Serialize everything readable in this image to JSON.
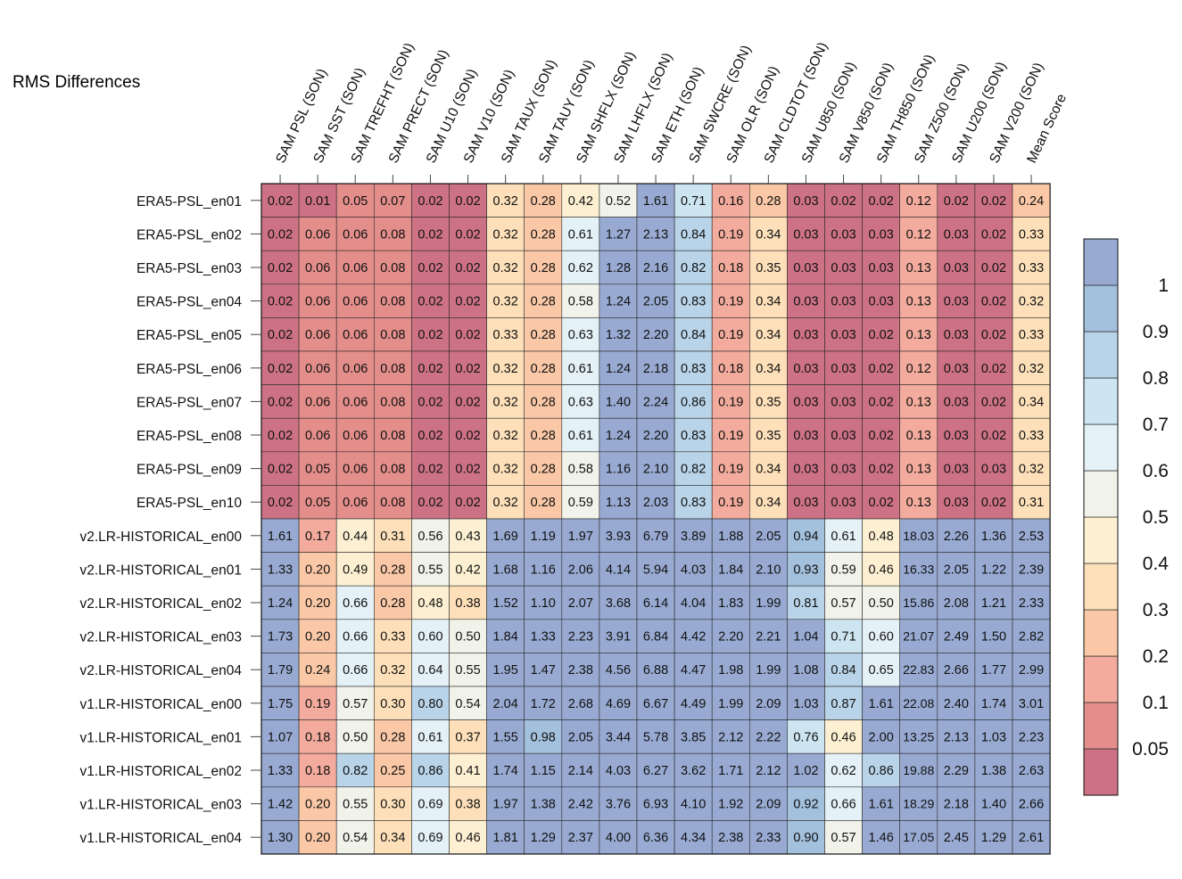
{
  "title": "RMS Differences",
  "chart_data": {
    "type": "heatmap",
    "columns": [
      "SAM PSL (SON)",
      "SAM SST (SON)",
      "SAM TREFHT (SON)",
      "SAM PRECT (SON)",
      "SAM U10 (SON)",
      "SAM V10 (SON)",
      "SAM TAUX (SON)",
      "SAM TAUY (SON)",
      "SAM SHFLX (SON)",
      "SAM LHFLX (SON)",
      "SAM ETH (SON)",
      "SAM SWCRE (SON)",
      "SAM OLR (SON)",
      "SAM CLDTOT (SON)",
      "SAM U850 (SON)",
      "SAM V850 (SON)",
      "SAM TH850 (SON)",
      "SAM Z500 (SON)",
      "SAM U200 (SON)",
      "SAM V200 (SON)",
      "Mean Score"
    ],
    "rows": [
      "ERA5-PSL_en01",
      "ERA5-PSL_en02",
      "ERA5-PSL_en03",
      "ERA5-PSL_en04",
      "ERA5-PSL_en05",
      "ERA5-PSL_en06",
      "ERA5-PSL_en07",
      "ERA5-PSL_en08",
      "ERA5-PSL_en09",
      "ERA5-PSL_en10",
      "v2.LR-HISTORICAL_en00",
      "v2.LR-HISTORICAL_en01",
      "v2.LR-HISTORICAL_en02",
      "v2.LR-HISTORICAL_en03",
      "v2.LR-HISTORICAL_en04",
      "v1.LR-HISTORICAL_en00",
      "v1.LR-HISTORICAL_en01",
      "v1.LR-HISTORICAL_en02",
      "v1.LR-HISTORICAL_en03",
      "v1.LR-HISTORICAL_en04"
    ],
    "values": [
      [
        0.02,
        0.01,
        0.05,
        0.07,
        0.02,
        0.02,
        0.32,
        0.28,
        0.42,
        0.52,
        1.61,
        0.71,
        0.16,
        0.28,
        0.03,
        0.02,
        0.02,
        0.12,
        0.02,
        0.02,
        0.24
      ],
      [
        0.02,
        0.06,
        0.06,
        0.08,
        0.02,
        0.02,
        0.32,
        0.28,
        0.61,
        1.27,
        2.13,
        0.84,
        0.19,
        0.34,
        0.03,
        0.03,
        0.03,
        0.12,
        0.03,
        0.02,
        0.33
      ],
      [
        0.02,
        0.06,
        0.06,
        0.08,
        0.02,
        0.02,
        0.32,
        0.28,
        0.62,
        1.28,
        2.16,
        0.82,
        0.18,
        0.35,
        0.03,
        0.03,
        0.03,
        0.13,
        0.03,
        0.02,
        0.33
      ],
      [
        0.02,
        0.06,
        0.06,
        0.08,
        0.02,
        0.02,
        0.32,
        0.28,
        0.58,
        1.24,
        2.05,
        0.83,
        0.19,
        0.34,
        0.03,
        0.03,
        0.03,
        0.13,
        0.03,
        0.02,
        0.32
      ],
      [
        0.02,
        0.06,
        0.06,
        0.08,
        0.02,
        0.02,
        0.33,
        0.28,
        0.63,
        1.32,
        2.2,
        0.84,
        0.19,
        0.34,
        0.03,
        0.03,
        0.02,
        0.13,
        0.03,
        0.02,
        0.33
      ],
      [
        0.02,
        0.06,
        0.06,
        0.08,
        0.02,
        0.02,
        0.32,
        0.28,
        0.61,
        1.24,
        2.18,
        0.83,
        0.18,
        0.34,
        0.03,
        0.03,
        0.02,
        0.12,
        0.03,
        0.02,
        0.32
      ],
      [
        0.02,
        0.06,
        0.06,
        0.08,
        0.02,
        0.02,
        0.32,
        0.28,
        0.63,
        1.4,
        2.24,
        0.86,
        0.19,
        0.35,
        0.03,
        0.03,
        0.02,
        0.13,
        0.03,
        0.02,
        0.34
      ],
      [
        0.02,
        0.06,
        0.06,
        0.08,
        0.02,
        0.02,
        0.32,
        0.28,
        0.61,
        1.24,
        2.2,
        0.83,
        0.19,
        0.35,
        0.03,
        0.03,
        0.02,
        0.13,
        0.03,
        0.02,
        0.33
      ],
      [
        0.02,
        0.05,
        0.06,
        0.08,
        0.02,
        0.02,
        0.32,
        0.28,
        0.58,
        1.16,
        2.1,
        0.82,
        0.19,
        0.34,
        0.03,
        0.03,
        0.02,
        0.13,
        0.03,
        0.03,
        0.32
      ],
      [
        0.02,
        0.05,
        0.06,
        0.08,
        0.02,
        0.02,
        0.32,
        0.28,
        0.59,
        1.13,
        2.03,
        0.83,
        0.19,
        0.34,
        0.03,
        0.03,
        0.02,
        0.13,
        0.03,
        0.02,
        0.31
      ],
      [
        1.61,
        0.17,
        0.44,
        0.31,
        0.56,
        0.43,
        1.69,
        1.19,
        1.97,
        3.93,
        6.79,
        3.89,
        1.88,
        2.05,
        0.94,
        0.61,
        0.48,
        18.03,
        2.26,
        1.36,
        2.53
      ],
      [
        1.33,
        0.2,
        0.49,
        0.28,
        0.55,
        0.42,
        1.68,
        1.16,
        2.06,
        4.14,
        5.94,
        4.03,
        1.84,
        2.1,
        0.93,
        0.59,
        0.46,
        16.33,
        2.05,
        1.22,
        2.39
      ],
      [
        1.24,
        0.2,
        0.66,
        0.28,
        0.48,
        0.38,
        1.52,
        1.1,
        2.07,
        3.68,
        6.14,
        4.04,
        1.83,
        1.99,
        0.81,
        0.57,
        0.5,
        15.86,
        2.08,
        1.21,
        2.33
      ],
      [
        1.73,
        0.2,
        0.66,
        0.33,
        0.6,
        0.5,
        1.84,
        1.33,
        2.23,
        3.91,
        6.84,
        4.42,
        2.2,
        2.21,
        1.04,
        0.71,
        0.6,
        21.07,
        2.49,
        1.5,
        2.82
      ],
      [
        1.79,
        0.24,
        0.66,
        0.32,
        0.64,
        0.55,
        1.95,
        1.47,
        2.38,
        4.56,
        6.88,
        4.47,
        1.98,
        1.99,
        1.08,
        0.84,
        0.65,
        22.83,
        2.66,
        1.77,
        2.99
      ],
      [
        1.75,
        0.19,
        0.57,
        0.3,
        0.8,
        0.54,
        2.04,
        1.72,
        2.68,
        4.69,
        6.67,
        4.49,
        1.99,
        2.09,
        1.03,
        0.87,
        1.61,
        22.08,
        2.4,
        1.74,
        3.01
      ],
      [
        1.07,
        0.18,
        0.5,
        0.28,
        0.61,
        0.37,
        1.55,
        0.98,
        2.05,
        3.44,
        5.78,
        3.85,
        2.12,
        2.22,
        0.76,
        0.46,
        2.0,
        13.25,
        2.13,
        1.03,
        2.23
      ],
      [
        1.33,
        0.18,
        0.82,
        0.25,
        0.86,
        0.41,
        1.74,
        1.15,
        2.14,
        4.03,
        6.27,
        3.62,
        1.71,
        2.12,
        1.02,
        0.62,
        0.86,
        19.88,
        2.29,
        1.38,
        2.63
      ],
      [
        1.42,
        0.2,
        0.55,
        0.3,
        0.69,
        0.38,
        1.97,
        1.38,
        2.42,
        3.76,
        6.93,
        4.1,
        1.92,
        2.09,
        0.92,
        0.66,
        1.61,
        18.29,
        2.18,
        1.4,
        2.66
      ],
      [
        1.3,
        0.2,
        0.54,
        0.34,
        0.69,
        0.46,
        1.81,
        1.29,
        2.37,
        4.0,
        6.36,
        4.34,
        2.38,
        2.33,
        0.9,
        0.57,
        1.46,
        17.05,
        2.45,
        1.29,
        2.61
      ]
    ],
    "colorbar": {
      "levels": [
        0.05,
        0.1,
        0.2,
        0.3,
        0.4,
        0.5,
        0.6,
        0.7,
        0.8,
        0.9,
        1
      ],
      "tick_labels": [
        "0.05",
        "0.1",
        "0.2",
        "0.3",
        "0.4",
        "0.5",
        "0.6",
        "0.7",
        "0.8",
        "0.9",
        "1"
      ],
      "colors": [
        "#cd7285",
        "#e38e8b",
        "#f2ab9c",
        "#fac8a6",
        "#fde0b9",
        "#fdf0d2",
        "#f1f2e9",
        "#e4f1f6",
        "#cde5f0",
        "#b9d4e8",
        "#a3c0dd",
        "#98aad2"
      ],
      "legend_position": "right"
    }
  }
}
